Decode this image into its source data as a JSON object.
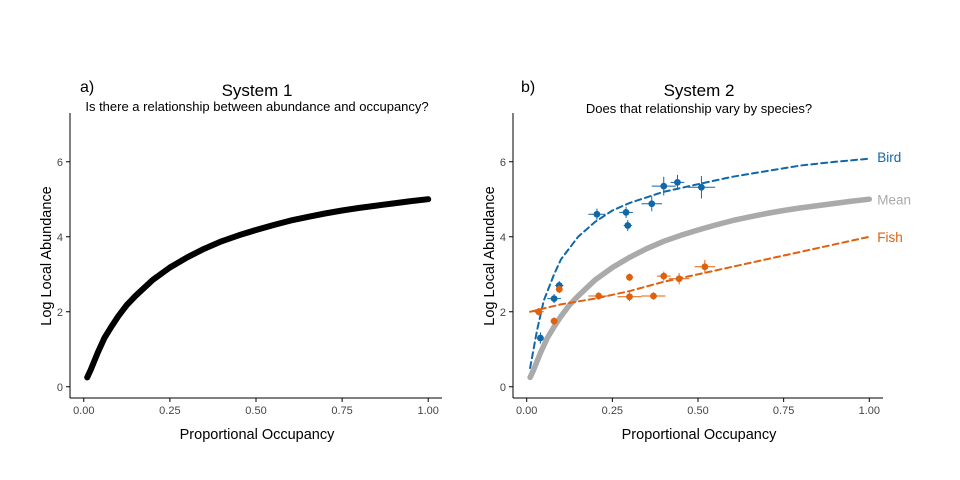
{
  "chart_data": [
    {
      "type": "line",
      "panel_label": "a)",
      "title": "System 1",
      "subtitle": "Is there a relationship between abundance and occupancy?",
      "xlabel": "Proportional Occupancy",
      "ylabel": "Log Local Abundance",
      "xlim": [
        -0.04,
        1.04
      ],
      "ylim": [
        -0.3,
        7.3
      ],
      "xticks": [
        0,
        0.25,
        0.5,
        0.75,
        1
      ],
      "xtick_labels": [
        "0.00",
        "0.25",
        "0.50",
        "0.75",
        "1.00"
      ],
      "yticks": [
        0,
        2,
        4,
        6
      ],
      "ytick_labels": [
        "0",
        "2",
        "4",
        "6"
      ],
      "grid": false,
      "series": [
        {
          "color": "#000000",
          "style": "solid",
          "x": [
            0.01,
            0.02,
            0.04,
            0.06,
            0.08,
            0.1,
            0.125,
            0.15,
            0.2,
            0.25,
            0.3,
            0.35,
            0.4,
            0.45,
            0.5,
            0.55,
            0.6,
            0.65,
            0.7,
            0.75,
            0.8,
            0.85,
            0.9,
            0.95,
            1.0
          ],
          "y": [
            0.25,
            0.45,
            0.9,
            1.3,
            1.6,
            1.88,
            2.18,
            2.42,
            2.85,
            3.18,
            3.45,
            3.68,
            3.88,
            4.04,
            4.18,
            4.31,
            4.43,
            4.53,
            4.62,
            4.7,
            4.77,
            4.83,
            4.89,
            4.95,
            5.0
          ]
        }
      ]
    },
    {
      "type": "line",
      "panel_label": "b)",
      "title": "System 2",
      "subtitle": "Does that relationship vary by species?",
      "xlabel": "Proportional Occupancy",
      "ylabel": "Log Local Abundance",
      "xlim": [
        -0.04,
        1.04
      ],
      "ylim": [
        -0.3,
        7.3
      ],
      "xticks": [
        0,
        0.25,
        0.5,
        0.75,
        1
      ],
      "xtick_labels": [
        "0.00",
        "0.25",
        "0.50",
        "0.75",
        "1.00"
      ],
      "yticks": [
        0,
        2,
        4,
        6
      ],
      "ytick_labels": [
        "0",
        "2",
        "4",
        "6"
      ],
      "grid": false,
      "series": [
        {
          "name": "Mean",
          "color": "#aaaaaa",
          "style": "solid",
          "x": [
            0.01,
            0.02,
            0.04,
            0.06,
            0.08,
            0.1,
            0.125,
            0.15,
            0.2,
            0.25,
            0.3,
            0.35,
            0.4,
            0.45,
            0.5,
            0.55,
            0.6,
            0.65,
            0.7,
            0.75,
            0.8,
            0.85,
            0.9,
            0.95,
            1.0
          ],
          "y": [
            0.25,
            0.45,
            0.9,
            1.3,
            1.6,
            1.88,
            2.18,
            2.42,
            2.85,
            3.18,
            3.45,
            3.68,
            3.88,
            4.04,
            4.18,
            4.31,
            4.43,
            4.53,
            4.62,
            4.7,
            4.77,
            4.83,
            4.89,
            4.95,
            5.0
          ]
        },
        {
          "name": "Bird",
          "color": "#1068a8",
          "style": "dashed",
          "x": [
            0.01,
            0.03,
            0.05,
            0.08,
            0.1,
            0.15,
            0.2,
            0.25,
            0.3,
            0.35,
            0.4,
            0.45,
            0.5,
            0.6,
            0.7,
            0.8,
            0.9,
            1.0
          ],
          "y": [
            0.5,
            1.5,
            2.3,
            3.0,
            3.4,
            4.0,
            4.4,
            4.7,
            4.9,
            5.05,
            5.2,
            5.3,
            5.4,
            5.6,
            5.75,
            5.9,
            6.0,
            6.08
          ],
          "points": [
            {
              "x": 0.04,
              "y": 1.3,
              "xerr": 0.01,
              "yerr": 0.15
            },
            {
              "x": 0.08,
              "y": 2.35,
              "xerr": 0.02,
              "yerr": 0.12
            },
            {
              "x": 0.095,
              "y": 2.7,
              "xerr": 0.012,
              "yerr": 0.12
            },
            {
              "x": 0.205,
              "y": 4.6,
              "xerr": 0.025,
              "yerr": 0.15
            },
            {
              "x": 0.29,
              "y": 4.65,
              "xerr": 0.02,
              "yerr": 0.15
            },
            {
              "x": 0.295,
              "y": 4.3,
              "xerr": 0.012,
              "yerr": 0.15
            },
            {
              "x": 0.365,
              "y": 4.88,
              "xerr": 0.03,
              "yerr": 0.2
            },
            {
              "x": 0.4,
              "y": 5.35,
              "xerr": 0.035,
              "yerr": 0.25
            },
            {
              "x": 0.44,
              "y": 5.45,
              "xerr": 0.02,
              "yerr": 0.2
            },
            {
              "x": 0.51,
              "y": 5.32,
              "xerr": 0.04,
              "yerr": 0.3
            }
          ]
        },
        {
          "name": "Fish",
          "color": "#e0600c",
          "style": "dashed",
          "x": [
            0.01,
            0.1,
            0.2,
            0.3,
            0.4,
            0.5,
            0.6,
            0.7,
            0.8,
            0.9,
            1.0
          ],
          "y": [
            2.0,
            2.2,
            2.35,
            2.55,
            2.8,
            3.0,
            3.2,
            3.4,
            3.6,
            3.8,
            4.0
          ],
          "points": [
            {
              "x": 0.035,
              "y": 2.0,
              "xerr": 0.015,
              "yerr": 0.1
            },
            {
              "x": 0.08,
              "y": 1.75,
              "xerr": 0.01,
              "yerr": 0.1
            },
            {
              "x": 0.095,
              "y": 2.6,
              "xerr": 0.01,
              "yerr": 0.1
            },
            {
              "x": 0.21,
              "y": 2.42,
              "xerr": 0.03,
              "yerr": 0.1
            },
            {
              "x": 0.3,
              "y": 2.4,
              "xerr": 0.035,
              "yerr": 0.12
            },
            {
              "x": 0.3,
              "y": 2.92,
              "xerr": 0.01,
              "yerr": 0.1
            },
            {
              "x": 0.37,
              "y": 2.42,
              "xerr": 0.035,
              "yerr": 0.1
            },
            {
              "x": 0.4,
              "y": 2.95,
              "xerr": 0.02,
              "yerr": 0.12
            },
            {
              "x": 0.445,
              "y": 2.88,
              "xerr": 0.03,
              "yerr": 0.15
            },
            {
              "x": 0.52,
              "y": 3.2,
              "xerr": 0.03,
              "yerr": 0.18
            }
          ]
        }
      ]
    }
  ]
}
